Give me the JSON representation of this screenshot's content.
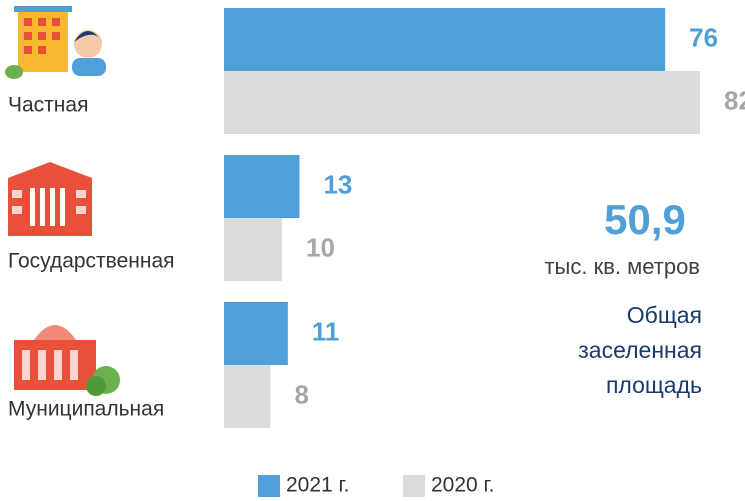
{
  "chart_data": {
    "type": "bar",
    "orientation": "horizontal",
    "categories": [
      "Частная",
      "Государственная",
      "Муниципальная"
    ],
    "series": [
      {
        "name": "2021 г.",
        "color": "#4f9fd8",
        "label_color": "#4f9fd8",
        "values": [
          76,
          13,
          11
        ]
      },
      {
        "name": "2020 г.",
        "color": "#dcdcdc",
        "label_color": "#a6a6a6",
        "values": [
          82,
          10,
          8
        ]
      }
    ],
    "annotations": {
      "total": "50,9",
      "unit": "тыс. кв. метров",
      "caption": "Общая заселенная площадь"
    },
    "legend": "bottom"
  }
}
